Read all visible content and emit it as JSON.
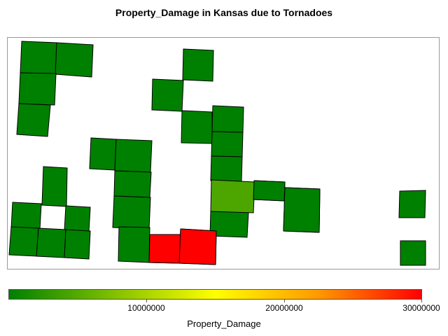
{
  "title": "Property_Damage in Kansas due to Tornadoes",
  "legend": {
    "title": "Property_Damage",
    "min": 0,
    "max": 30000000,
    "ticks": [
      "10000000",
      "20000000",
      "30000000"
    ],
    "colors": {
      "low": "#008000",
      "mid": "#ffff00",
      "high": "#ff0000"
    }
  },
  "chart_data": {
    "type": "choropleth",
    "title": "Property_Damage in Kansas due to Tornadoes",
    "value_field": "Property_Damage",
    "color_range": [
      0,
      30000000
    ],
    "regions": [
      {
        "value": 0
      },
      {
        "value": 0
      },
      {
        "value": 0
      },
      {
        "value": 0
      },
      {
        "value": 0
      },
      {
        "value": 0
      },
      {
        "value": 0
      },
      {
        "value": 0
      },
      {
        "value": 0
      },
      {
        "value": 0
      },
      {
        "value": 0
      },
      {
        "value": 0
      },
      {
        "value": 0
      },
      {
        "value": 0
      },
      {
        "value": 0
      },
      {
        "value": 0
      },
      {
        "value": 0
      },
      {
        "value": 0
      },
      {
        "value": 0
      },
      {
        "value": 0
      },
      {
        "value": 0
      },
      {
        "value": 0
      },
      {
        "value": 0
      },
      {
        "value": 4500000
      },
      {
        "value": 0
      },
      {
        "value": 0
      },
      {
        "value": 0
      },
      {
        "value": 0
      },
      {
        "value": 4500000
      },
      {
        "value": 30000000
      },
      {
        "value": 30000000
      },
      {
        "value": 0
      },
      {
        "value": 0
      }
    ]
  }
}
